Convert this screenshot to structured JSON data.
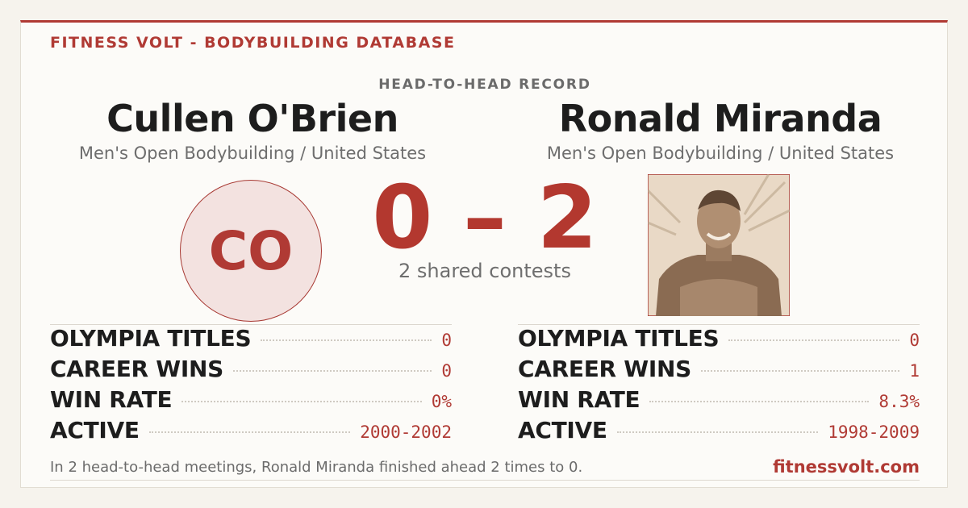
{
  "header": {
    "brand": "FITNESS VOLT - BODYBUILDING DATABASE"
  },
  "matchup": {
    "label": "HEAD-TO-HEAD RECORD",
    "score": "0 – 2",
    "shared": "2 shared contests"
  },
  "athletes": [
    {
      "name": "Cullen O'Brien",
      "division": "Men's Open Bodybuilding / United States",
      "initials": "CO",
      "stats": [
        {
          "label": "OLYMPIA TITLES",
          "value": "0"
        },
        {
          "label": "CAREER WINS",
          "value": "0"
        },
        {
          "label": "WIN RATE",
          "value": "0%"
        },
        {
          "label": "ACTIVE",
          "value": "2000-2002"
        }
      ]
    },
    {
      "name": "Ronald Miranda",
      "division": "Men's Open Bodybuilding / United States",
      "stats": [
        {
          "label": "OLYMPIA TITLES",
          "value": "0"
        },
        {
          "label": "CAREER WINS",
          "value": "1"
        },
        {
          "label": "WIN RATE",
          "value": "8.3%"
        },
        {
          "label": "ACTIVE",
          "value": "1998-2009"
        }
      ]
    }
  ],
  "footer": {
    "summary": "In 2 head-to-head meetings, Ronald Miranda finished ahead 2 times to 0.",
    "site": "fitnessvolt.com"
  }
}
